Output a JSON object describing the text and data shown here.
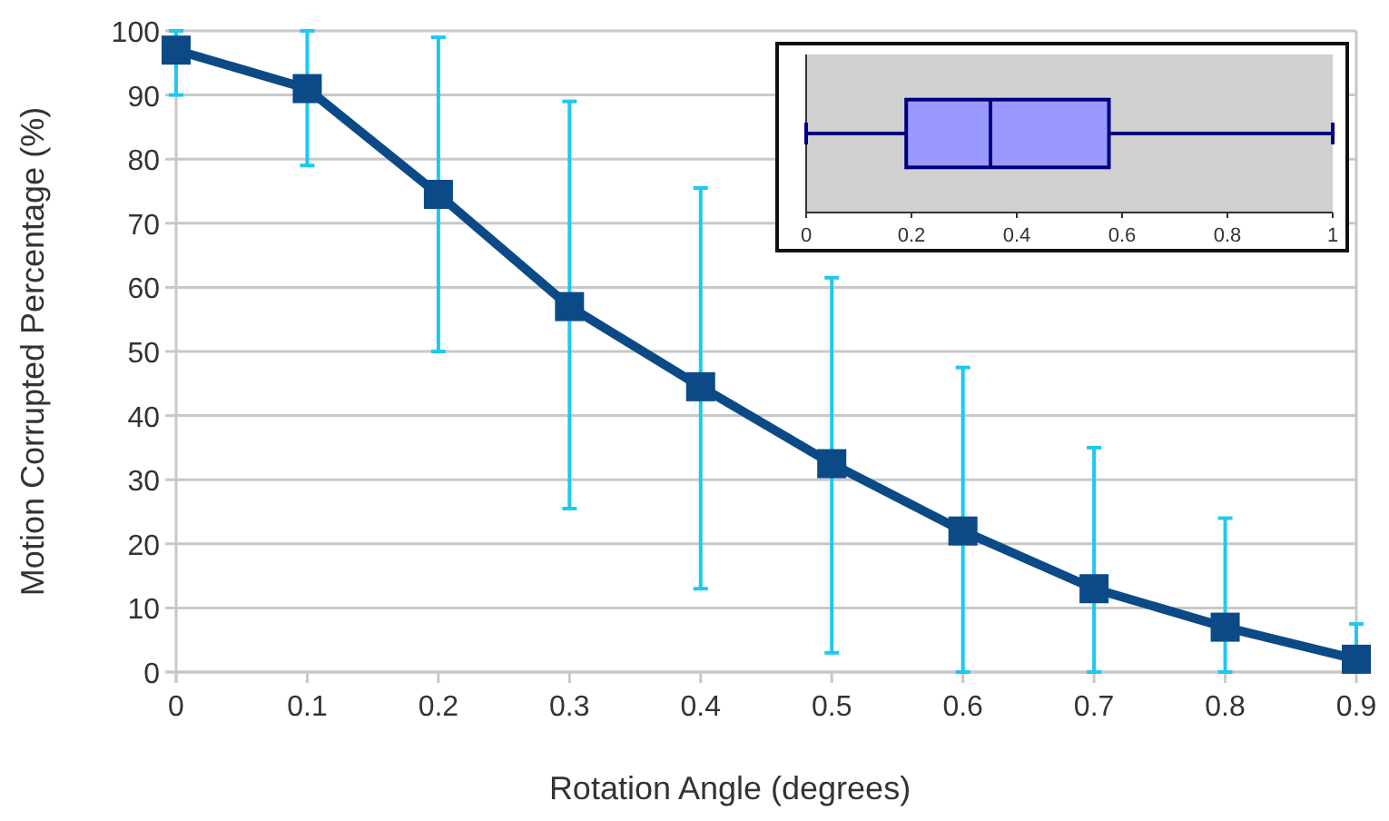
{
  "chart_data": [
    {
      "type": "line",
      "xlabel": "Rotation Angle (degrees)",
      "ylabel": "Motion Corrupted Percentage (%)",
      "x": [
        0,
        0.1,
        0.2,
        0.3,
        0.4,
        0.5,
        0.6,
        0.7,
        0.8,
        0.9
      ],
      "series": [
        {
          "color": "#0b4a86",
          "values": [
            97,
            91,
            74.5,
            57,
            44.5,
            32.5,
            22,
            13,
            7,
            2
          ],
          "errors": [
            [
              90,
              100
            ],
            [
              79,
              100
            ],
            [
              50,
              99
            ],
            [
              25.5,
              89
            ],
            [
              13,
              75.5
            ],
            [
              3,
              61.5
            ],
            [
              0,
              47.5
            ],
            [
              0,
              35
            ],
            [
              0,
              24
            ],
            [
              0,
              7.5
            ]
          ]
        }
      ],
      "xlim": [
        0,
        0.9
      ],
      "xticks": [
        0,
        0.1,
        0.2,
        0.3,
        0.4,
        0.5,
        0.6,
        0.7,
        0.8,
        0.9
      ],
      "ylim": [
        0,
        100
      ],
      "yticks": [
        0,
        10,
        20,
        30,
        40,
        50,
        60,
        70,
        80,
        90,
        100
      ],
      "grid": "y",
      "marker": "square",
      "line_style": "solid"
    },
    {
      "type": "box",
      "orientation": "horizontal",
      "categories": [
        null
      ],
      "series": [
        {
          "color": "#9999ff",
          "boxes": [
            {
              "low": 0,
              "q1": 0.19,
              "median": 0.35,
              "q3": 0.575,
              "high": 1
            }
          ]
        }
      ],
      "xlim": [
        0,
        1
      ],
      "xticks": [
        0,
        0.2,
        0.4,
        0.6,
        0.8,
        1
      ],
      "tick_labels": "x"
    }
  ]
}
